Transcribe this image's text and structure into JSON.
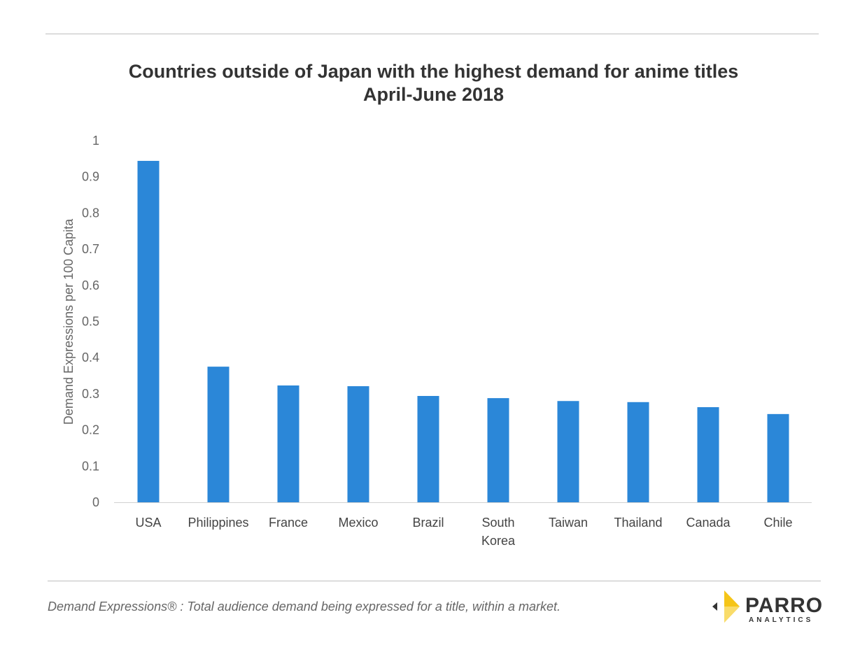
{
  "chart_data": {
    "type": "bar",
    "title": "Countries outside of Japan with the highest demand for anime titles",
    "subtitle": "April-June 2018",
    "xlabel": "",
    "ylabel": "Demand Expressions per 100 Capita",
    "ylim": [
      0,
      1
    ],
    "yticks": [
      "0",
      "0.1",
      "0.2",
      "0.3",
      "0.4",
      "0.5",
      "0.6",
      "0.7",
      "0.8",
      "0.9",
      "1"
    ],
    "grid": false,
    "color": "#2b87d8",
    "categories": [
      "USA",
      "Philippines",
      "France",
      "Mexico",
      "Brazil",
      "South Korea",
      "Taiwan",
      "Thailand",
      "Canada",
      "Chile"
    ],
    "values": [
      0.944,
      0.375,
      0.323,
      0.321,
      0.294,
      0.288,
      0.28,
      0.277,
      0.263,
      0.244
    ]
  },
  "footer": {
    "note": "Demand Expressions® :  Total audience demand being expressed for a title, within a market.",
    "logo_text": "PARROT",
    "logo_sub": "ANALYTICS"
  }
}
